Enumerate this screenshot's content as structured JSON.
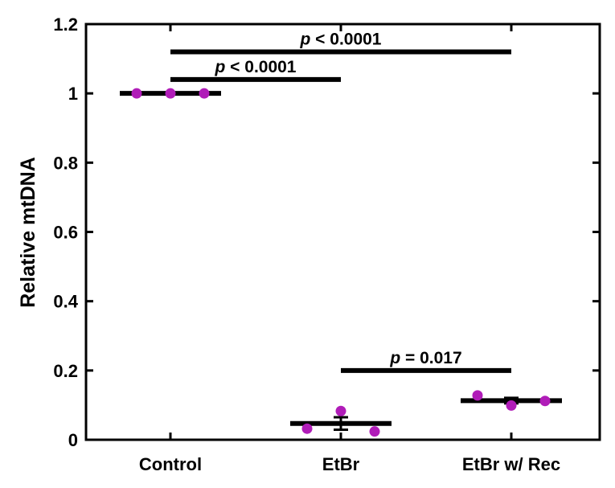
{
  "chart_data": {
    "type": "scatter",
    "ylabel": "Relative mtDNA",
    "xlabel": "",
    "categories": [
      "Control",
      "EtBr",
      "EtBr w/ Rec"
    ],
    "ylim": [
      0,
      1.2
    ],
    "yticks": [
      "0",
      "0.2",
      "0.4",
      "0.6",
      "0.8",
      "1",
      "1.2"
    ],
    "grid": false,
    "point_color": "#b01cb8",
    "groups": [
      {
        "name": "Control",
        "points": [
          1.0,
          1.0,
          1.0
        ],
        "mean": 1.0,
        "error": 0.0
      },
      {
        "name": "EtBr",
        "points": [
          0.032,
          0.083,
          0.024
        ],
        "mean": 0.047,
        "error": 0.018
      },
      {
        "name": "EtBr w/ Rec",
        "points": [
          0.128,
          0.099,
          0.112
        ],
        "mean": 0.113,
        "error": 0.008
      }
    ],
    "significance": [
      {
        "from": "Control",
        "to": "EtBr w/ Rec",
        "y": 1.12,
        "p_symbol": "p",
        "label": " < 0.0001"
      },
      {
        "from": "Control",
        "to": "EtBr",
        "y": 1.04,
        "p_symbol": "p",
        "label": " < 0.0001"
      },
      {
        "from": "EtBr",
        "to": "EtBr w/ Rec",
        "y": 0.2,
        "p_symbol": "p",
        "label": " = 0.017"
      }
    ]
  }
}
